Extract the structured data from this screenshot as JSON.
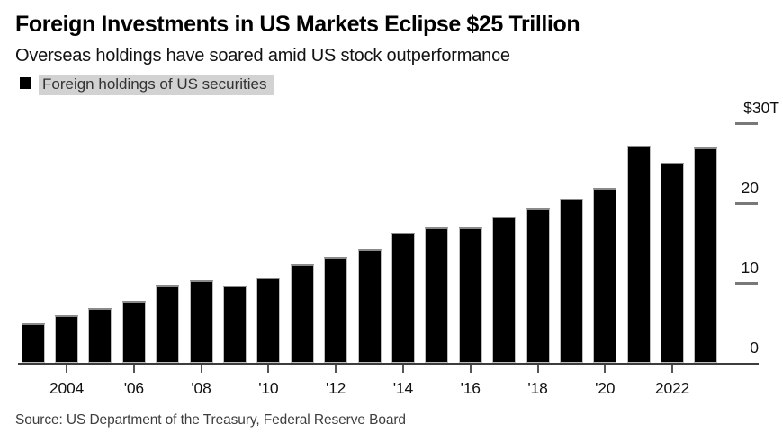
{
  "header": {
    "title": "Foreign Investments in US Markets Eclipse $25 Trillion",
    "subtitle": "Overseas holdings have soared amid US stock outperformance"
  },
  "legend": {
    "label": "Foreign holdings of US securities",
    "swatch_color": "#000000",
    "highlight_bg_color": "#d2d2d2"
  },
  "source": "Source: US Department of the Treasury, Federal Reserve Board",
  "chart_data": {
    "type": "bar",
    "title": "Foreign Investments in US Markets Eclipse $25 Trillion",
    "subtitle": "Overseas holdings have soared amid US stock outperformance",
    "series_name": "Foreign holdings of US securities",
    "unit": "USD trillions",
    "categories": [
      "2003",
      "2004",
      "2005",
      "2006",
      "2007",
      "2008",
      "2009",
      "2010",
      "2011",
      "2012",
      "2013",
      "2014",
      "2015",
      "2016",
      "2017",
      "2018",
      "2019",
      "2020",
      "2021",
      "2022",
      "2023"
    ],
    "values": [
      4.9,
      6.0,
      6.9,
      7.7,
      9.8,
      10.3,
      9.7,
      10.7,
      12.3,
      13.2,
      14.3,
      16.3,
      17.0,
      17.0,
      18.3,
      19.3,
      20.5,
      21.9,
      27.2,
      25.0,
      26.9
    ],
    "bar_color": "#000000",
    "ylim": [
      0,
      30
    ],
    "y_axis_side": "right",
    "grid": false,
    "legend_position": "top-left",
    "y_ticks": [
      {
        "value": 30,
        "label": "$30T"
      },
      {
        "value": 20,
        "label": "20"
      },
      {
        "value": 10,
        "label": "10"
      },
      {
        "value": 0,
        "label": "0"
      }
    ],
    "x_ticks": [
      {
        "year": "2004",
        "label": "2004"
      },
      {
        "year": "2006",
        "label": "'06"
      },
      {
        "year": "2008",
        "label": "'08"
      },
      {
        "year": "2010",
        "label": "'10"
      },
      {
        "year": "2012",
        "label": "'12"
      },
      {
        "year": "2014",
        "label": "'14"
      },
      {
        "year": "2016",
        "label": "'16"
      },
      {
        "year": "2018",
        "label": "'18"
      },
      {
        "year": "2020",
        "label": "'20"
      },
      {
        "year": "2022",
        "label": "2022"
      }
    ]
  }
}
